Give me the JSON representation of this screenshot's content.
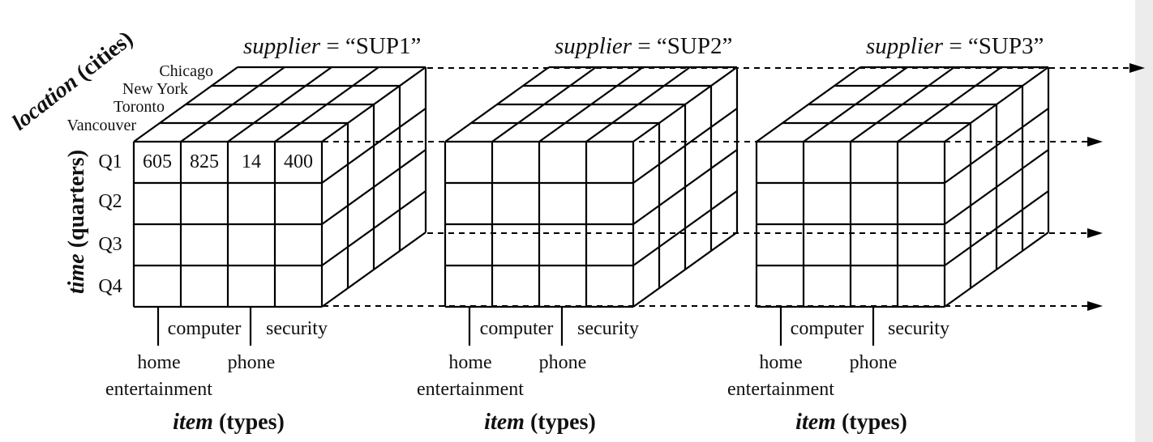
{
  "axes": {
    "location_label": "location",
    "location_unit": "(cities)",
    "time_label": "time",
    "time_unit": "(quarters)",
    "item_label": "item",
    "item_unit": "(types)"
  },
  "locations": [
    "Chicago",
    "New York",
    "Toronto",
    "Vancouver"
  ],
  "quarters": [
    "Q1",
    "Q2",
    "Q3",
    "Q4"
  ],
  "item_labels": {
    "computer": "computer",
    "security": "security",
    "home": "home",
    "entertainment": "entertainment",
    "phone": "phone"
  },
  "suppliers": [
    {
      "prefix": "supplier",
      "equals": " = ",
      "value": "“SUP1”"
    },
    {
      "prefix": "supplier",
      "equals": " = ",
      "value": "“SUP2”"
    },
    {
      "prefix": "supplier",
      "equals": " = ",
      "value": "“SUP3”"
    }
  ],
  "q1_vancouver_values": [
    "605",
    "825",
    "14",
    "400"
  ]
}
